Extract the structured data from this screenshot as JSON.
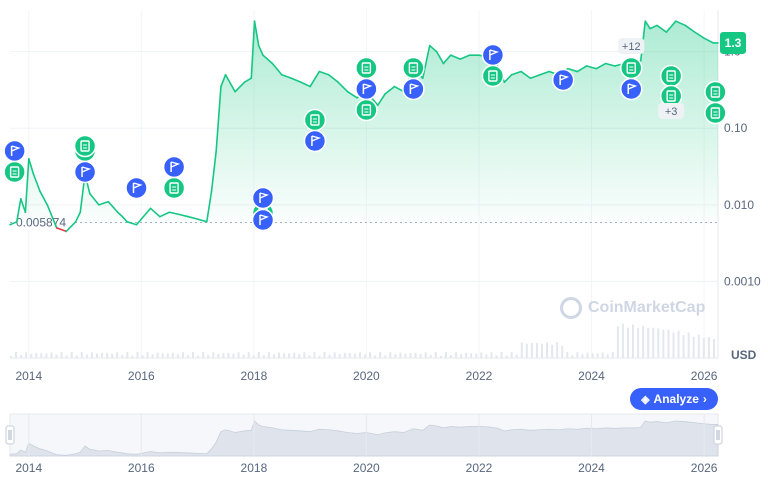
{
  "chart_data": {
    "type": "line",
    "ylabel_unit": "USD",
    "y_scale": "log",
    "ylim": [
      0.0001,
      3.5
    ],
    "y_ticks": [
      {
        "value": 0.001,
        "label": "0.0010"
      },
      {
        "value": 0.01,
        "label": "0.010"
      },
      {
        "value": 0.1,
        "label": "0.10"
      },
      {
        "value": 1,
        "label": "1.0"
      }
    ],
    "x_ticks": [
      "2014",
      "2016",
      "2018",
      "2020",
      "2022",
      "2024",
      "2026"
    ],
    "xlim": [
      "2013-09-01",
      "2026-04-01"
    ],
    "reference_line": {
      "value": 0.005874,
      "label": "0.005874"
    },
    "current_price": {
      "value": 1.3,
      "label": "1.3"
    },
    "series": [
      {
        "x": [
          "2013-09-01",
          "2013-10-15",
          "2013-11-10",
          "2013-12-10",
          "2014-01-01",
          "2014-02-01",
          "2014-03-15",
          "2014-05-01",
          "2014-07-01",
          "2014-09-01",
          "2014-11-01",
          "2014-12-01",
          "2015-01-01",
          "2015-02-01",
          "2015-04-01",
          "2015-06-01",
          "2015-08-01",
          "2015-09-01",
          "2015-10-01",
          "2015-12-01",
          "2016-01-01",
          "2016-03-01",
          "2016-05-01",
          "2016-07-01",
          "2016-09-01",
          "2016-11-01",
          "2017-01-01",
          "2017-03-01",
          "2017-04-01",
          "2017-05-01",
          "2017-06-01",
          "2017-07-01",
          "2017-09-01",
          "2017-11-01",
          "2017-12-15",
          "2018-01-05",
          "2018-02-01",
          "2018-03-01",
          "2018-05-01",
          "2018-07-01",
          "2018-09-01",
          "2018-11-01",
          "2019-01-01",
          "2019-03-01",
          "2019-05-01",
          "2019-07-01",
          "2019-09-01",
          "2019-11-01",
          "2020-01-01",
          "2020-03-15",
          "2020-05-01",
          "2020-07-01",
          "2020-09-01",
          "2020-11-01",
          "2021-01-01",
          "2021-02-15",
          "2021-04-01",
          "2021-05-15",
          "2021-07-01",
          "2021-09-01",
          "2021-11-01",
          "2022-01-01",
          "2022-03-01",
          "2022-05-01",
          "2022-06-15",
          "2022-08-01",
          "2022-10-01",
          "2022-12-01",
          "2023-02-01",
          "2023-04-01",
          "2023-06-01",
          "2023-08-01",
          "2023-10-01",
          "2023-12-01",
          "2024-02-01",
          "2024-04-01",
          "2024-06-01",
          "2024-08-01",
          "2024-10-01",
          "2024-11-15",
          "2024-12-15",
          "2025-01-15",
          "2025-03-01",
          "2025-05-01",
          "2025-07-01",
          "2025-09-01",
          "2025-11-01",
          "2026-01-01",
          "2026-03-01",
          "2026-04-01"
        ],
        "values": [
          0.0055,
          0.006,
          0.012,
          0.008,
          0.04,
          0.025,
          0.015,
          0.01,
          0.005,
          0.0045,
          0.006,
          0.008,
          0.025,
          0.014,
          0.01,
          0.011,
          0.008,
          0.007,
          0.006,
          0.0055,
          0.0065,
          0.009,
          0.007,
          0.008,
          0.0075,
          0.007,
          0.0065,
          0.006,
          0.015,
          0.05,
          0.35,
          0.5,
          0.3,
          0.4,
          0.45,
          2.5,
          1.2,
          0.9,
          0.7,
          0.5,
          0.45,
          0.4,
          0.35,
          0.55,
          0.5,
          0.4,
          0.3,
          0.25,
          0.3,
          0.2,
          0.28,
          0.35,
          0.3,
          0.6,
          0.45,
          1.2,
          1.0,
          0.7,
          0.9,
          0.8,
          0.9,
          0.9,
          0.85,
          0.65,
          0.4,
          0.5,
          0.55,
          0.45,
          0.5,
          0.55,
          0.5,
          0.6,
          0.55,
          0.65,
          0.6,
          0.7,
          0.65,
          0.7,
          0.7,
          0.75,
          2.5,
          2.0,
          2.2,
          1.8,
          2.5,
          2.2,
          1.8,
          1.5,
          1.3,
          1.3
        ]
      }
    ],
    "markers": [
      {
        "date": "2013-10-01",
        "row": 0,
        "type": "flag"
      },
      {
        "date": "2013-10-01",
        "row": 1,
        "type": "doc"
      },
      {
        "date": "2015-01-01",
        "row": 0,
        "type": "doc"
      },
      {
        "date": "2015-01-01",
        "row": 1,
        "type": "flag"
      },
      {
        "date": "2015-01-01",
        "row": 2,
        "type": "doc"
      },
      {
        "date": "2015-12-01",
        "row": 4,
        "type": "flag"
      },
      {
        "date": "2016-08-01",
        "row": 3,
        "type": "flag"
      },
      {
        "date": "2016-08-01",
        "row": 4,
        "type": "doc"
      },
      {
        "date": "2018-03-01",
        "row": 5,
        "type": "doc"
      },
      {
        "date": "2018-03-01",
        "row": 6,
        "type": "flag"
      },
      {
        "date": "2018-03-01",
        "row": 7,
        "type": "flag"
      },
      {
        "date": "2019-02-01",
        "row": 8,
        "type": "doc"
      },
      {
        "date": "2019-02-01",
        "row": 9,
        "type": "flag"
      },
      {
        "date": "2020-01-01",
        "row": 10,
        "type": "doc"
      },
      {
        "date": "2020-01-01",
        "row": 11,
        "type": "flag"
      },
      {
        "date": "2020-01-01",
        "row": 12,
        "type": "doc"
      },
      {
        "date": "2020-11-01",
        "row": 10,
        "type": "doc"
      },
      {
        "date": "2020-11-01",
        "row": 11,
        "type": "flag"
      },
      {
        "date": "2022-04-01",
        "row": 13,
        "type": "flag"
      },
      {
        "date": "2022-04-01",
        "row": 14,
        "type": "doc"
      },
      {
        "date": "2023-07-01",
        "row": 15,
        "type": "flag"
      },
      {
        "date": "2024-09-15",
        "row": 10,
        "type": "doc"
      },
      {
        "date": "2024-09-15",
        "row": 11,
        "type": "flag"
      },
      {
        "date": "2025-06-01",
        "row": 14,
        "type": "doc"
      },
      {
        "date": "2025-06-01",
        "row": 16,
        "type": "doc"
      },
      {
        "date": "2026-03-15",
        "row": 17,
        "type": "doc"
      },
      {
        "date": "2026-03-15",
        "row": 18,
        "type": "doc"
      }
    ],
    "marker_counters": [
      {
        "date": "2024-09-15",
        "label": "+12"
      },
      {
        "date": "2025-06-01",
        "label": "+3"
      }
    ]
  },
  "watermark": "CoinMarketCap",
  "analyze_button": {
    "label": "Analyze"
  },
  "colors": {
    "line_up": "#16c784",
    "line_down": "#ea3943",
    "fill": "#16c784",
    "flag": "#3861fb",
    "doc": "#16c784",
    "price_tag": "#16c784",
    "analyze": "#3861fb"
  }
}
